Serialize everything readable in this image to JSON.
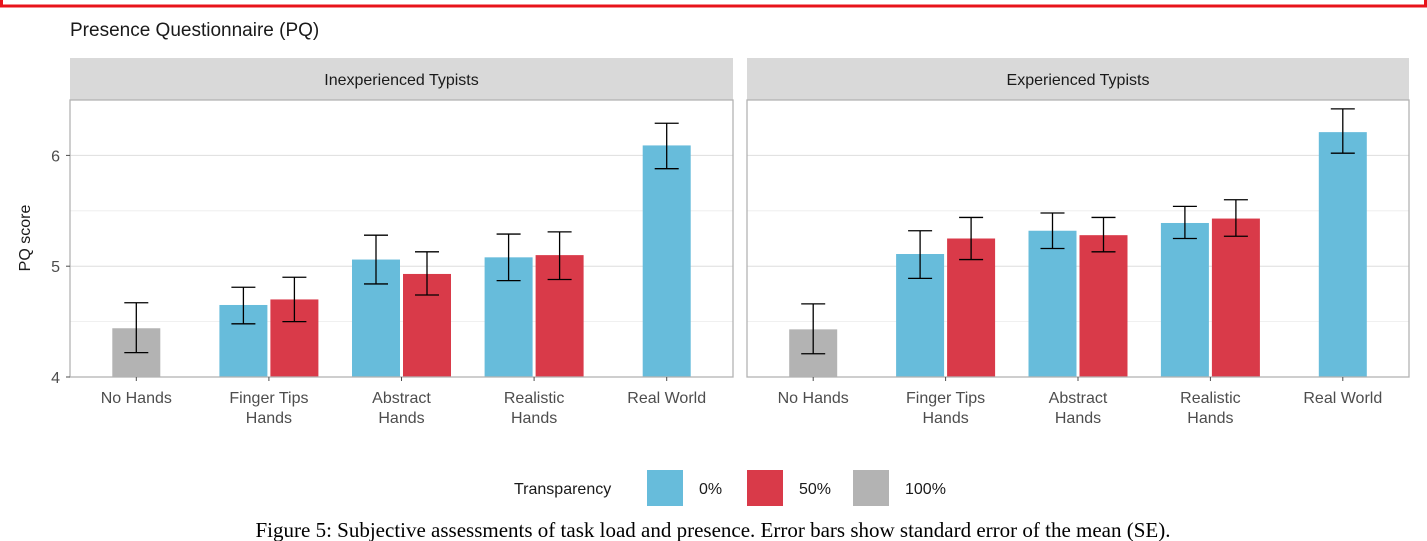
{
  "chart_data": {
    "type": "bar",
    "title": "Presence Questionnaire (PQ)",
    "ylabel": "PQ score",
    "xlabel": "",
    "ylim": [
      4,
      6.5
    ],
    "yticks": [
      4,
      5,
      6
    ],
    "grid": true,
    "legend": {
      "title": "Transparency",
      "position": "bottom",
      "entries": [
        {
          "label": "0%",
          "color": "#67bcdb"
        },
        {
          "label": "50%",
          "color": "#d93a49"
        },
        {
          "label": "100%",
          "color": "#b3b3b3"
        }
      ]
    },
    "categories": [
      {
        "lines": [
          "No Hands"
        ]
      },
      {
        "lines": [
          "Finger Tips",
          "Hands"
        ]
      },
      {
        "lines": [
          "Abstract",
          "Hands"
        ]
      },
      {
        "lines": [
          "Realistic",
          "Hands"
        ]
      },
      {
        "lines": [
          "Real World"
        ]
      }
    ],
    "panels": [
      {
        "name": "Inexperienced Typists",
        "bars": [
          {
            "category": 0,
            "transparency": "100%",
            "value": 4.44,
            "se_low": 4.22,
            "se_high": 4.67
          },
          {
            "category": 1,
            "transparency": "0%",
            "value": 4.65,
            "se_low": 4.48,
            "se_high": 4.81
          },
          {
            "category": 1,
            "transparency": "50%",
            "value": 4.7,
            "se_low": 4.5,
            "se_high": 4.9
          },
          {
            "category": 2,
            "transparency": "0%",
            "value": 5.06,
            "se_low": 4.84,
            "se_high": 5.28
          },
          {
            "category": 2,
            "transparency": "50%",
            "value": 4.93,
            "se_low": 4.74,
            "se_high": 5.13
          },
          {
            "category": 3,
            "transparency": "0%",
            "value": 5.08,
            "se_low": 4.87,
            "se_high": 5.29
          },
          {
            "category": 3,
            "transparency": "50%",
            "value": 5.1,
            "se_low": 4.88,
            "se_high": 5.31
          },
          {
            "category": 4,
            "transparency": "0%",
            "value": 6.09,
            "se_low": 5.88,
            "se_high": 6.29
          }
        ]
      },
      {
        "name": "Experienced Typists",
        "bars": [
          {
            "category": 0,
            "transparency": "100%",
            "value": 4.43,
            "se_low": 4.21,
            "se_high": 4.66
          },
          {
            "category": 1,
            "transparency": "0%",
            "value": 5.11,
            "se_low": 4.89,
            "se_high": 5.32
          },
          {
            "category": 1,
            "transparency": "50%",
            "value": 5.25,
            "se_low": 5.06,
            "se_high": 5.44
          },
          {
            "category": 2,
            "transparency": "0%",
            "value": 5.32,
            "se_low": 5.16,
            "se_high": 5.48
          },
          {
            "category": 2,
            "transparency": "50%",
            "value": 5.28,
            "se_low": 5.13,
            "se_high": 5.44
          },
          {
            "category": 3,
            "transparency": "0%",
            "value": 5.39,
            "se_low": 5.25,
            "se_high": 5.54
          },
          {
            "category": 3,
            "transparency": "50%",
            "value": 5.43,
            "se_low": 5.27,
            "se_high": 5.6
          },
          {
            "category": 4,
            "transparency": "0%",
            "value": 6.21,
            "se_low": 6.02,
            "se_high": 6.42
          }
        ]
      }
    ]
  },
  "caption": "Figure 5: Subjective assessments of task load and presence. Error bars show standard error of the mean (SE)."
}
